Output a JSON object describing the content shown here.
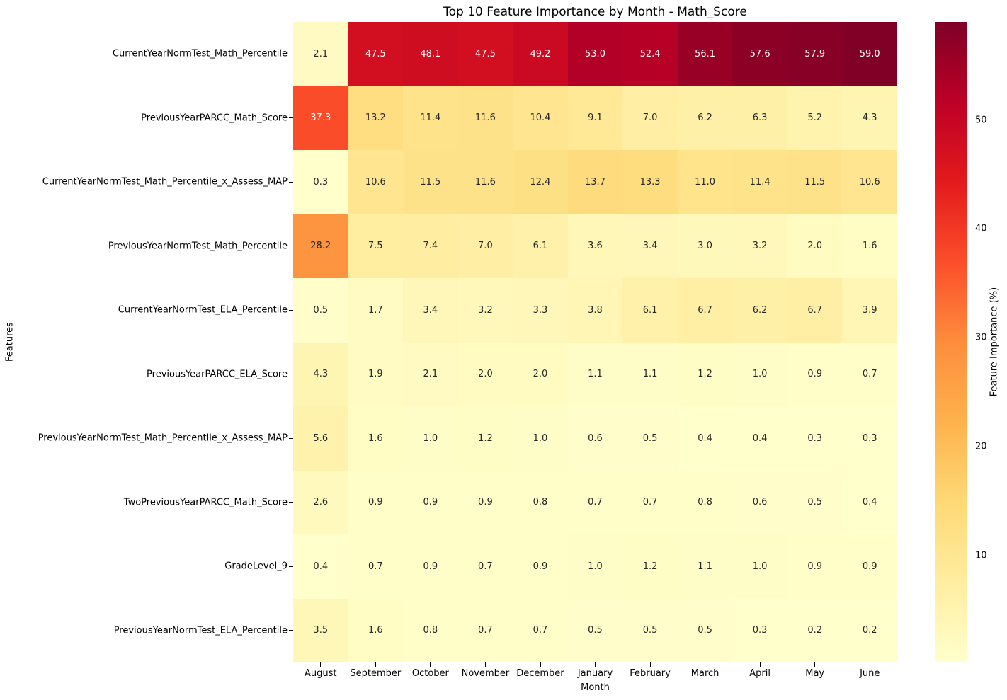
{
  "chart_data": {
    "type": "heatmap",
    "title": "Top 10 Feature Importance by Month - Math_Score",
    "xlabel": "Month",
    "ylabel": "Features",
    "value_format_decimals": 1,
    "columns": [
      "August",
      "September",
      "October",
      "November",
      "December",
      "January",
      "February",
      "March",
      "April",
      "May",
      "June"
    ],
    "rows": [
      "CurrentYearNormTest_Math_Percentile",
      "PreviousYearPARCC_Math_Score",
      "CurrentYearNormTest_Math_Percentile_x_Assess_MAP",
      "PreviousYearNormTest_Math_Percentile",
      "CurrentYearNormTest_ELA_Percentile",
      "PreviousYearPARCC_ELA_Score",
      "PreviousYearNormTest_Math_Percentile_x_Assess_MAP",
      "TwoPreviousYearPARCC_Math_Score",
      "GradeLevel_9",
      "PreviousYearNormTest_ELA_Percentile"
    ],
    "values": [
      [
        2.1,
        47.5,
        48.1,
        47.5,
        49.2,
        53.0,
        52.4,
        56.1,
        57.6,
        57.9,
        59.0
      ],
      [
        37.3,
        13.2,
        11.4,
        11.6,
        10.4,
        9.1,
        7.0,
        6.2,
        6.3,
        5.2,
        4.3
      ],
      [
        0.3,
        10.6,
        11.5,
        11.6,
        12.4,
        13.7,
        13.3,
        11.0,
        11.4,
        11.5,
        10.6
      ],
      [
        28.2,
        7.5,
        7.4,
        7.0,
        6.1,
        3.6,
        3.4,
        3.0,
        3.2,
        2.0,
        1.6
      ],
      [
        0.5,
        1.7,
        3.4,
        3.2,
        3.3,
        3.8,
        6.1,
        6.7,
        6.2,
        6.7,
        3.9
      ],
      [
        4.3,
        1.9,
        2.1,
        2.0,
        2.0,
        1.1,
        1.1,
        1.2,
        1.0,
        0.9,
        0.7
      ],
      [
        5.6,
        1.6,
        1.0,
        1.2,
        1.0,
        0.6,
        0.5,
        0.4,
        0.4,
        0.3,
        0.3
      ],
      [
        2.6,
        0.9,
        0.9,
        0.9,
        0.8,
        0.7,
        0.7,
        0.8,
        0.6,
        0.5,
        0.4
      ],
      [
        0.4,
        0.7,
        0.9,
        0.7,
        0.9,
        1.0,
        1.2,
        1.1,
        1.0,
        0.9,
        0.9
      ],
      [
        3.5,
        1.6,
        0.8,
        0.7,
        0.7,
        0.5,
        0.5,
        0.5,
        0.3,
        0.2,
        0.2
      ]
    ],
    "colorbar": {
      "label": "Feature Importance (%)",
      "ticks": [
        10,
        20,
        30,
        40,
        50
      ],
      "vmin": 0.2,
      "vmax": 59.0,
      "colormap": "YlOrRd",
      "colormap_stops": [
        "#ffffcc",
        "#ffeda0",
        "#fed976",
        "#feb24c",
        "#fd8d3c",
        "#fc4e2a",
        "#e31a1c",
        "#bd0026",
        "#800026"
      ]
    },
    "annotation_colors": {
      "on_light": "#262626",
      "on_dark": "#ffffff"
    }
  }
}
